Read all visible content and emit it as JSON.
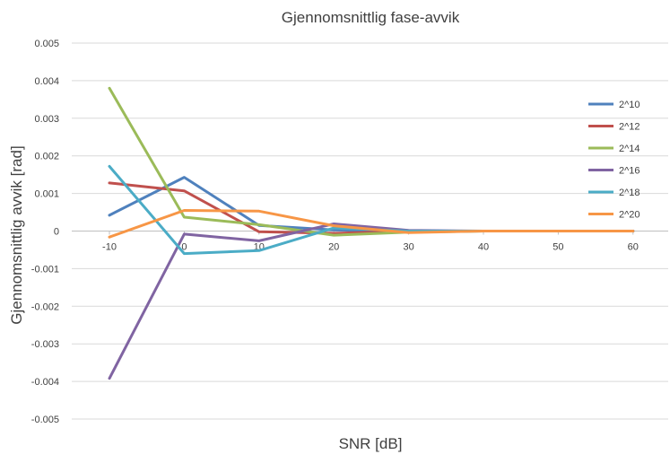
{
  "chart_data": {
    "type": "line",
    "title": "Gjennomsnittlig fase-avvik",
    "xlabel": "SNR [dB]",
    "ylabel": "Gjennomsnittlig avvik [rad]",
    "categories": [
      "-10",
      "0",
      "10",
      "20",
      "30",
      "40",
      "50",
      "60"
    ],
    "ylim": [
      -0.005,
      0.005
    ],
    "yticks": [
      "0.005",
      "0.004",
      "0.003",
      "0.002",
      "0.001",
      "0",
      "-0.001",
      "-0.002",
      "-0.003",
      "-0.004",
      "-0.005"
    ],
    "ytick_values": [
      0.005,
      0.004,
      0.003,
      0.002,
      0.001,
      0,
      -0.001,
      -0.002,
      -0.003,
      -0.004,
      -0.005
    ],
    "grid": true,
    "legend_position": "right",
    "series": [
      {
        "name": "2^10",
        "color": "#4F81BD",
        "values": [
          0.00042,
          0.00143,
          0.00015,
          3e-05,
          -2e-05,
          0,
          0,
          0
        ]
      },
      {
        "name": "2^12",
        "color": "#C0504D",
        "values": [
          0.00128,
          0.00107,
          -2e-05,
          -6e-05,
          0,
          0,
          0,
          0
        ]
      },
      {
        "name": "2^14",
        "color": "#9BBB59",
        "values": [
          0.0038,
          0.00037,
          0.00017,
          -0.00011,
          -3e-05,
          0,
          0,
          0
        ]
      },
      {
        "name": "2^16",
        "color": "#8064A2",
        "values": [
          -0.00392,
          -8e-05,
          -0.00026,
          0.00019,
          2e-05,
          0,
          0,
          0
        ]
      },
      {
        "name": "2^18",
        "color": "#4BACC6",
        "values": [
          0.00172,
          -0.0006,
          -0.00052,
          8e-05,
          0,
          0,
          0,
          0
        ]
      },
      {
        "name": "2^20",
        "color": "#F79646",
        "values": [
          -0.00016,
          0.00055,
          0.00053,
          0.00014,
          -4e-05,
          0,
          0,
          0
        ]
      }
    ]
  }
}
